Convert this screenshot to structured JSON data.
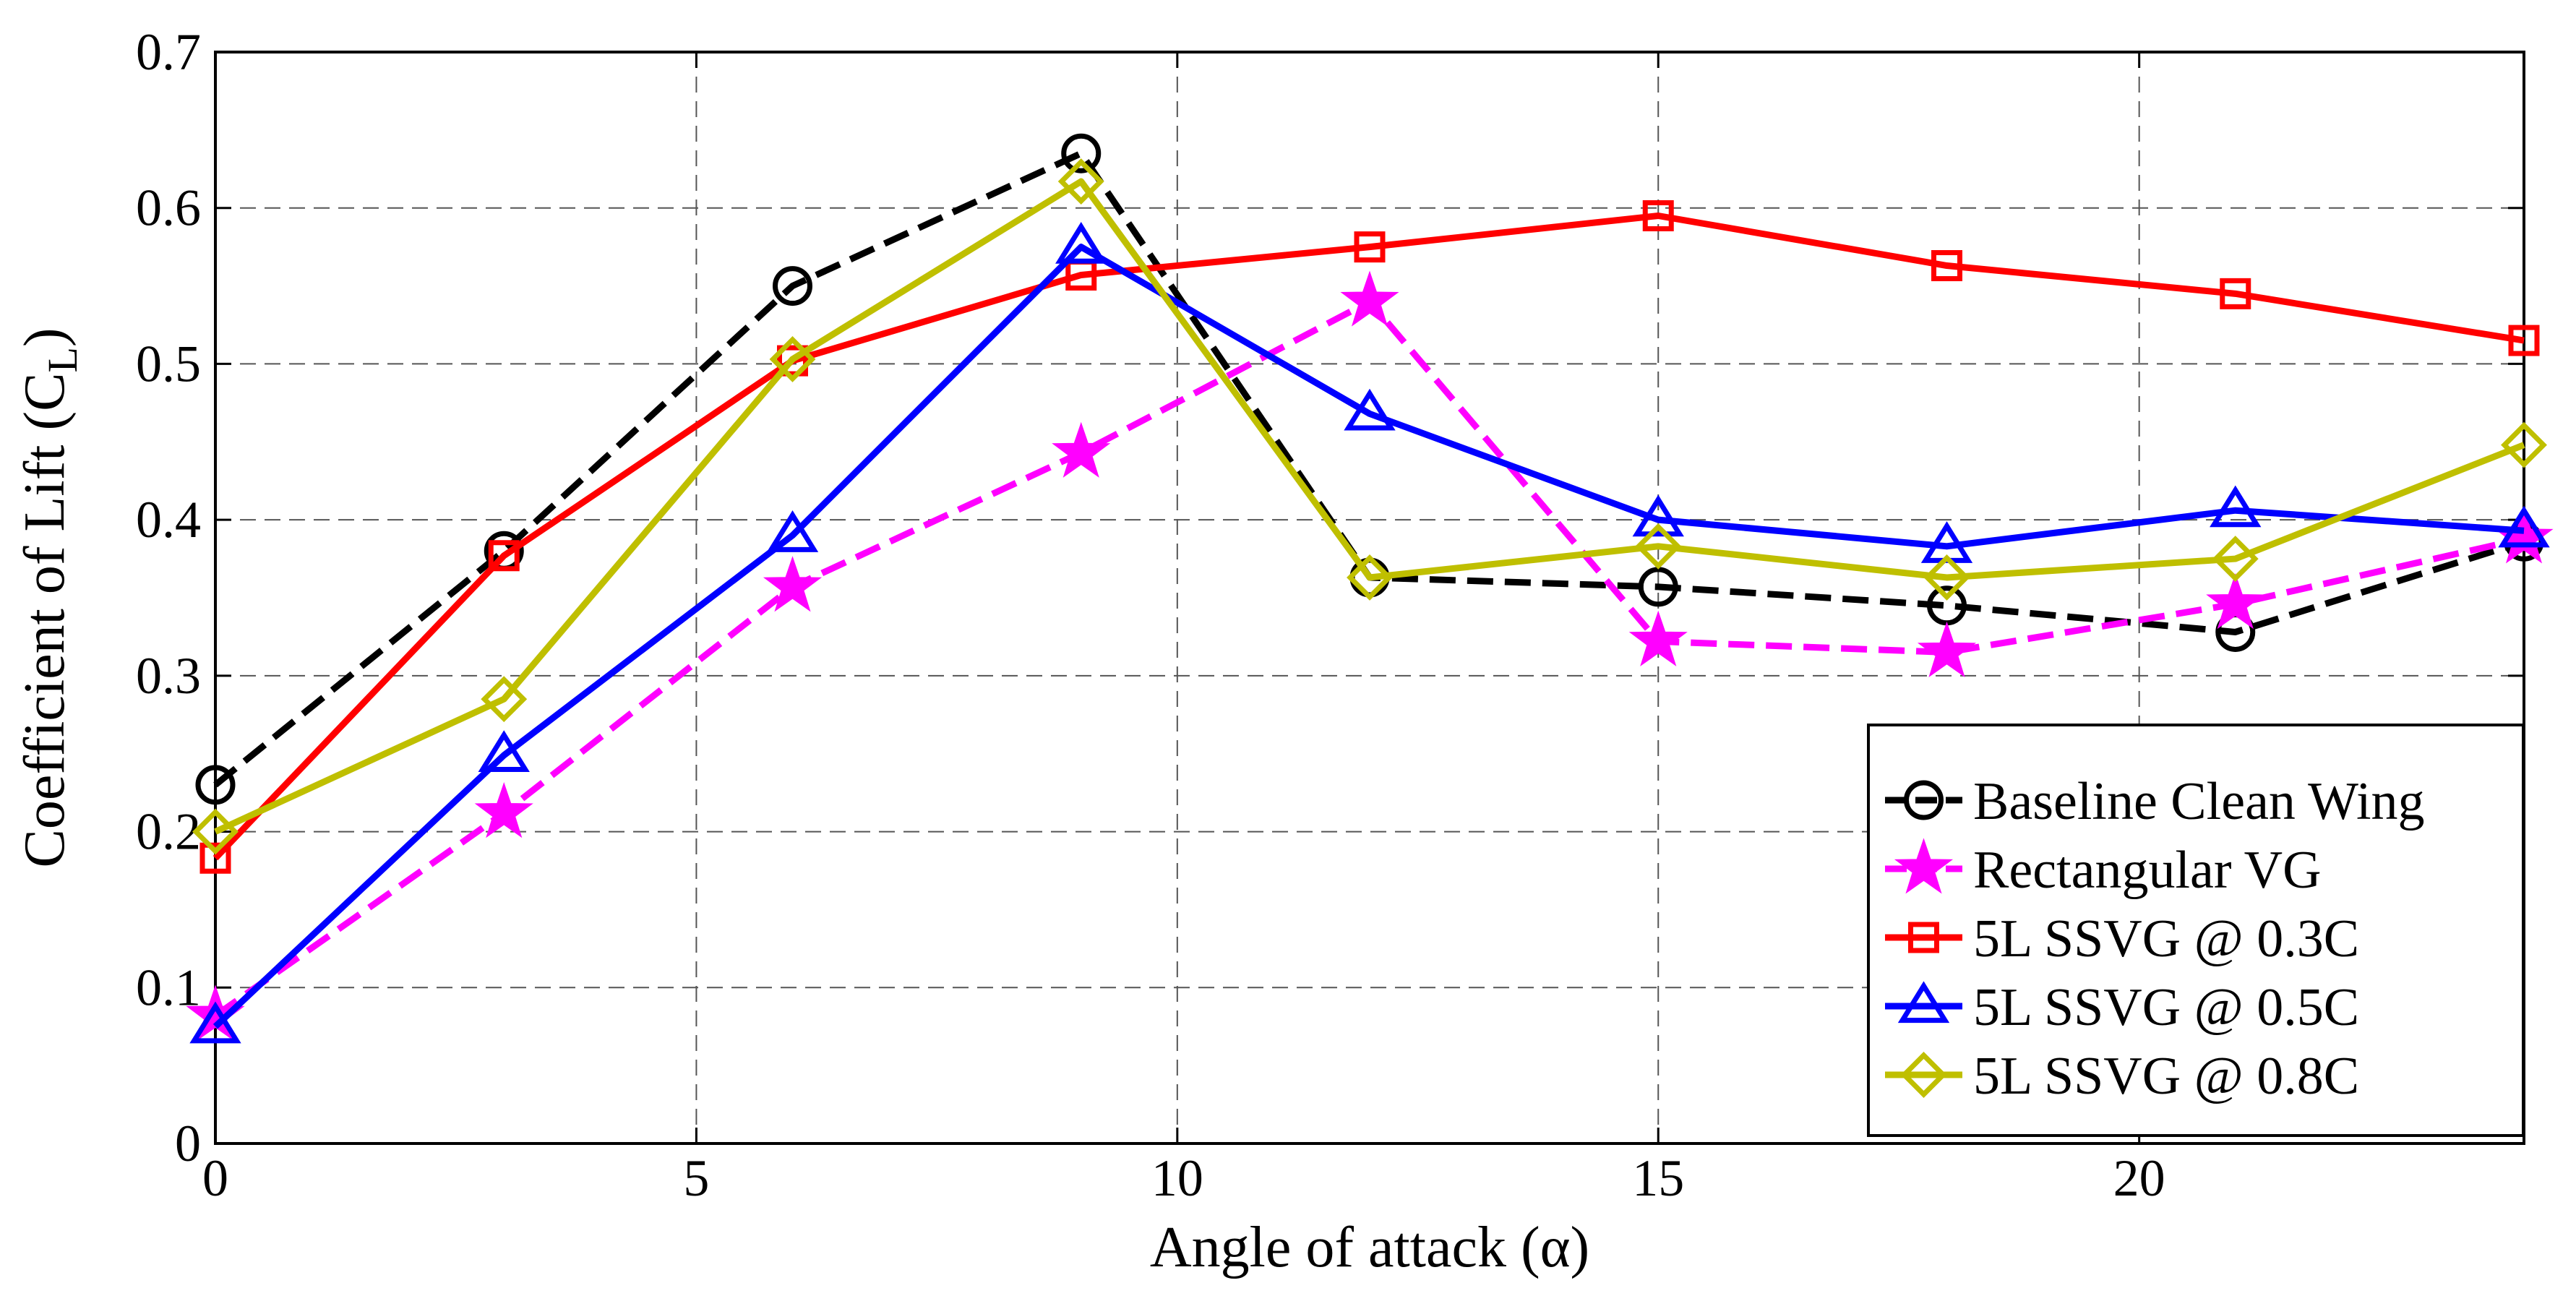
{
  "chart_data": {
    "type": "line",
    "title": "",
    "xlabel": "Angle of attack (α)",
    "ylabel_main": "Coefficient of Lift (C",
    "ylabel_sub": "L",
    "ylabel_close": ")",
    "xlim": [
      0,
      24
    ],
    "ylim": [
      0,
      0.7
    ],
    "grid": true,
    "legend_position": "bottom-right",
    "x": [
      0,
      3,
      6,
      9,
      12,
      15,
      18,
      21,
      24
    ],
    "xticks": [
      0,
      5,
      10,
      15,
      20
    ],
    "xtick_labels": [
      "0",
      "5",
      "10",
      "15",
      "20"
    ],
    "yticks": [
      0,
      0.1,
      0.2,
      0.3,
      0.4,
      0.5,
      0.6,
      0.7
    ],
    "ytick_labels": [
      "0",
      "0.1",
      "0.2",
      "0.3",
      "0.4",
      "0.5",
      "0.6",
      "0.7"
    ],
    "series": [
      {
        "name": "Baseline Clean Wing",
        "color": "#000000",
        "dash": "dashed",
        "marker": "circle",
        "values": [
          0.23,
          0.38,
          0.55,
          0.635,
          0.363,
          0.357,
          0.345,
          0.328,
          0.386
        ]
      },
      {
        "name": "Rectangular VG",
        "color": "#ff00ff",
        "dash": "dashed",
        "marker": "star",
        "values": [
          0.082,
          0.212,
          0.357,
          0.443,
          0.54,
          0.322,
          0.315,
          0.346,
          0.388
        ]
      },
      {
        "name": "5L SSVG @ 0.3C",
        "color": "#ff0000",
        "dash": "solid",
        "marker": "square",
        "values": [
          0.183,
          0.377,
          0.502,
          0.557,
          0.575,
          0.595,
          0.563,
          0.545,
          0.515
        ]
      },
      {
        "name": "5L SSVG @ 0.5C",
        "color": "#0000ff",
        "dash": "solid",
        "marker": "triangle",
        "values": [
          0.075,
          0.249,
          0.39,
          0.575,
          0.468,
          0.4,
          0.383,
          0.406,
          0.393
        ]
      },
      {
        "name": "5L SSVG @ 0.8C",
        "color": "#bfbf00",
        "dash": "solid",
        "marker": "diamond",
        "values": [
          0.2,
          0.285,
          0.503,
          0.617,
          0.363,
          0.383,
          0.363,
          0.375,
          0.448
        ]
      }
    ]
  }
}
